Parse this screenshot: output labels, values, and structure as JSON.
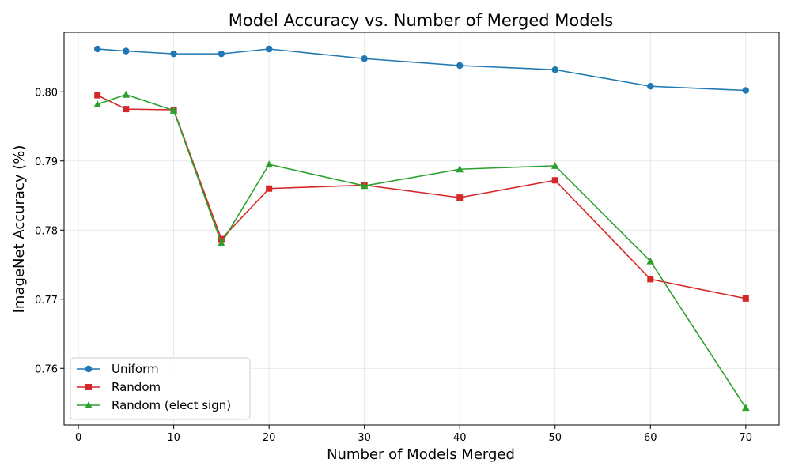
{
  "chart_data": {
    "type": "line",
    "title": "Model Accuracy vs. Number of Merged Models",
    "xlabel": "Number of Models Merged",
    "ylabel": "ImageNet Accuracy (%)",
    "xlim": [
      -1.5,
      73.5
    ],
    "ylim": [
      0.7518,
      0.8086
    ],
    "x_ticks": [
      0,
      10,
      20,
      30,
      40,
      50,
      60,
      70
    ],
    "y_ticks": [
      0.76,
      0.77,
      0.78,
      0.79,
      0.8
    ],
    "x_tick_labels": [
      "0",
      "10",
      "20",
      "30",
      "40",
      "50",
      "60",
      "70"
    ],
    "y_tick_labels": [
      "0.76",
      "0.77",
      "0.78",
      "0.79",
      "0.80"
    ],
    "grid": true,
    "legend_position": "lower-left",
    "x": [
      2,
      5,
      10,
      15,
      20,
      30,
      40,
      50,
      60,
      70
    ],
    "series": [
      {
        "name": "Uniform",
        "color": "#1f77b4",
        "marker": "circle",
        "values": [
          0.8062,
          0.8059,
          0.8055,
          0.8055,
          0.8062,
          0.8048,
          0.8038,
          0.8032,
          0.8008,
          0.8002
        ]
      },
      {
        "name": "Random",
        "color": "#d62728",
        "marker": "square",
        "values": [
          0.7995,
          0.7975,
          0.7974,
          0.7787,
          0.786,
          0.7865,
          0.7847,
          0.7872,
          0.7729,
          0.7701
        ]
      },
      {
        "name": "Random (elect sign)",
        "color": "#2ca02c",
        "marker": "triangle",
        "values": [
          0.7982,
          0.7996,
          0.7973,
          0.7781,
          0.7895,
          0.7864,
          0.7888,
          0.7893,
          0.7755,
          0.7543
        ]
      }
    ]
  }
}
